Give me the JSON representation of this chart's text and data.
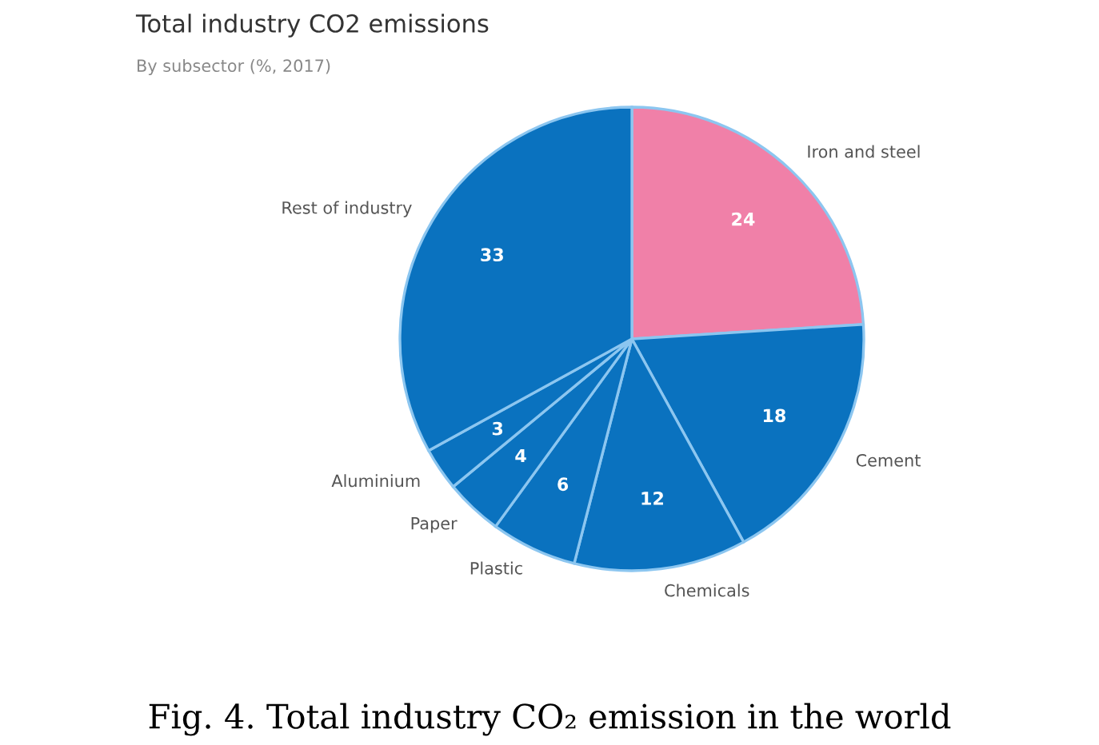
{
  "chart_data": {
    "type": "pie",
    "title": "Total industry CO2 emissions",
    "subtitle": "By subsector (%, 2017)",
    "categories": [
      "Iron and steel",
      "Cement",
      "Chemicals",
      "Plastic",
      "Paper",
      "Aluminium",
      "Rest of industry"
    ],
    "values": [
      24,
      18,
      12,
      6,
      4,
      3,
      33
    ],
    "colors": [
      "#f080a8",
      "#0a72bf",
      "#0a72bf",
      "#0a72bf",
      "#0a72bf",
      "#0a72bf",
      "#0a72bf"
    ],
    "data_labels": true,
    "annotations": [
      "Fig. 4. Total industry CO₂ emission in the world"
    ]
  }
}
